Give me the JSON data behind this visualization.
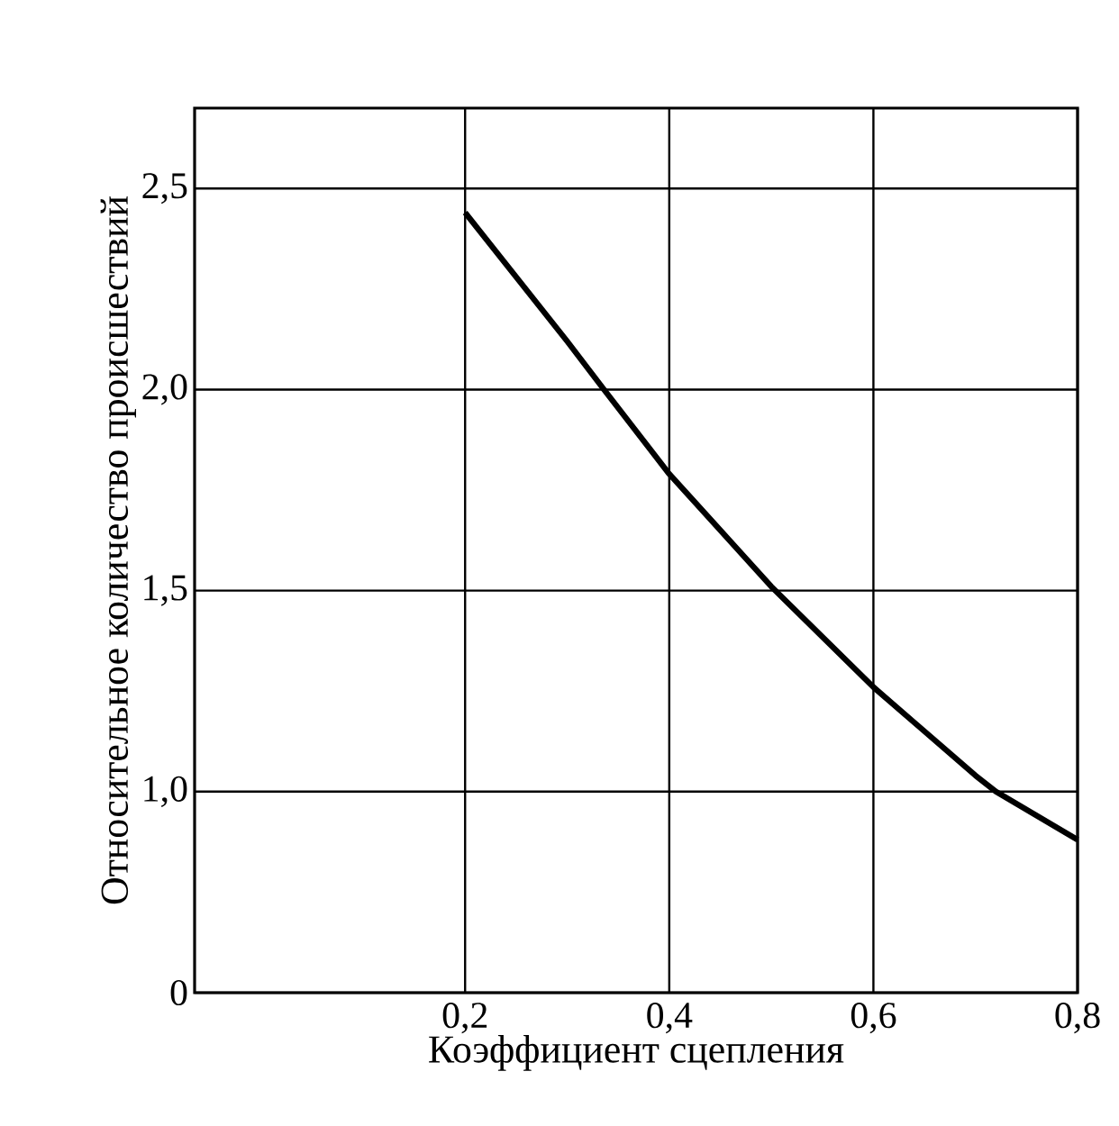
{
  "chart_data": {
    "type": "line",
    "xlabel": "Коэффициент сцепления",
    "ylabel": "Относительное количество происшествий",
    "x": [
      0.2,
      0.25,
      0.3,
      0.336,
      0.4,
      0.5,
      0.6,
      0.7,
      0.72,
      0.8
    ],
    "series": [
      {
        "color": "#000000",
        "values": [
          2.44,
          2.28,
          2.12,
          2.0,
          1.79,
          1.51,
          1.26,
          1.04,
          1.0,
          0.88
        ]
      }
    ],
    "xlim": [
      -0.065,
      0.8
    ],
    "ylim": [
      0.5,
      2.7
    ],
    "xticks": [
      {
        "value": 0.2,
        "label": "0,2"
      },
      {
        "value": 0.4,
        "label": "0,4"
      },
      {
        "value": 0.6,
        "label": "0,6"
      },
      {
        "value": 0.8,
        "label": "0,8"
      }
    ],
    "yticks": [
      {
        "value": 0.5,
        "label": "0"
      },
      {
        "value": 1.0,
        "label": "1,0"
      },
      {
        "value": 1.5,
        "label": "1,5"
      },
      {
        "value": 2.0,
        "label": "2,0"
      },
      {
        "value": 2.5,
        "label": "2,5"
      }
    ],
    "grid": true
  }
}
